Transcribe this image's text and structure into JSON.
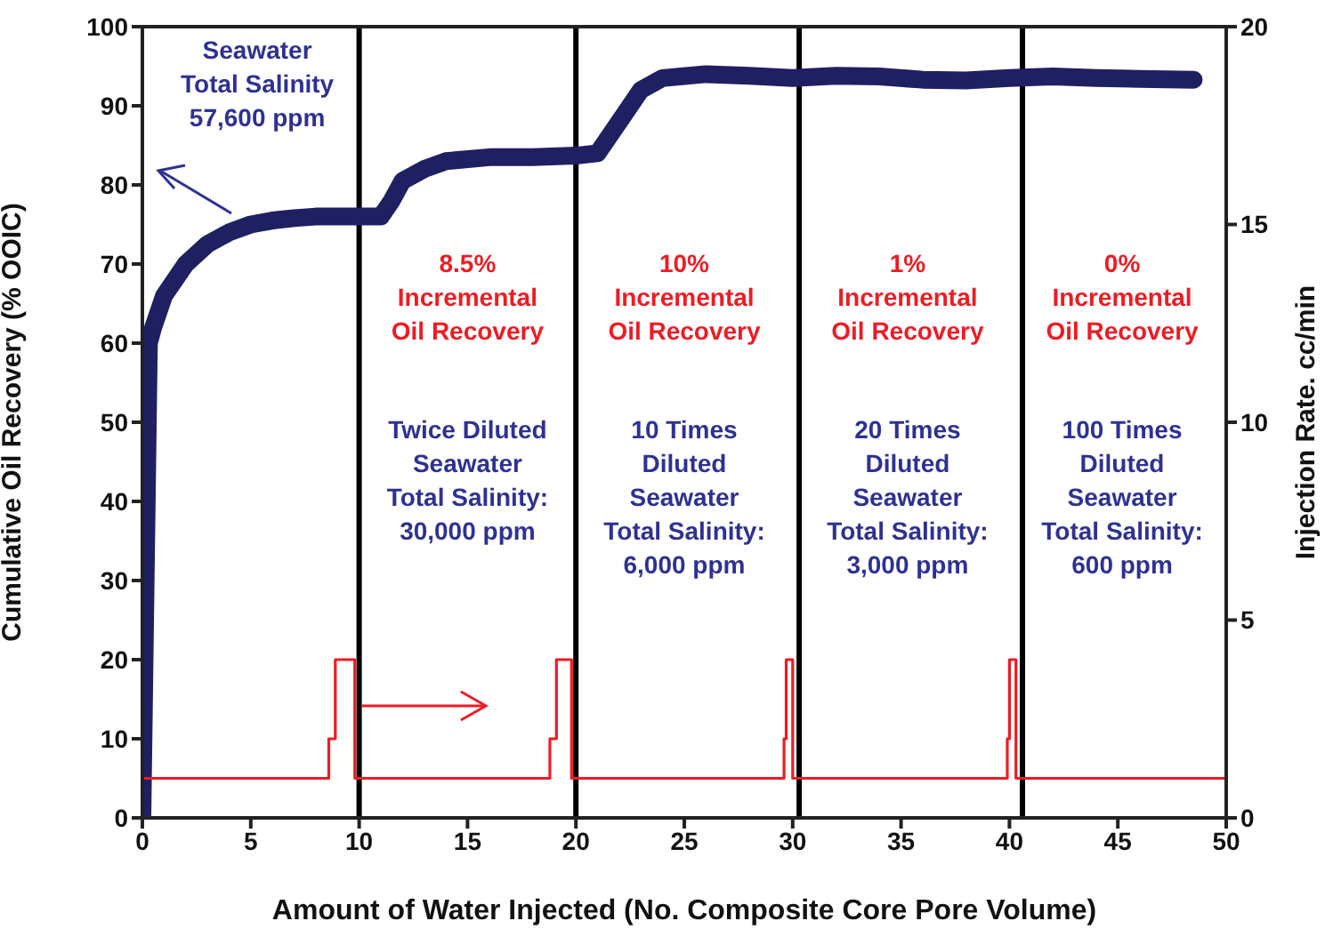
{
  "chart_data": {
    "type": "line",
    "xlabel": "Amount of Water Injected (No. Composite Core Pore Volume)",
    "ylabel": "Cumulative Oil Recovery (% OOIC)",
    "y2label": "Injection Rate. cc/min",
    "xlim": [
      0,
      50
    ],
    "xticks": [
      0,
      5,
      10,
      15,
      20,
      25,
      30,
      35,
      40,
      45,
      50
    ],
    "ylim": [
      0,
      100
    ],
    "yticks": [
      0,
      10,
      20,
      30,
      40,
      50,
      60,
      70,
      80,
      90,
      100
    ],
    "y2lim": [
      0,
      20
    ],
    "y2ticks": [
      0,
      5,
      10,
      15,
      20
    ],
    "series": [
      {
        "color": "#1f2062",
        "x": [
          0,
          0.3,
          0.5,
          1,
          2,
          3,
          4,
          5,
          6,
          7,
          8,
          10,
          11,
          11.5,
          12,
          13,
          14,
          16,
          18,
          20,
          21,
          22,
          23,
          24,
          26,
          28,
          30,
          32,
          34,
          36,
          38,
          40,
          42,
          44,
          46,
          48.5
        ],
        "values": [
          0,
          60,
          62,
          66,
          70,
          72.5,
          74,
          75,
          75.5,
          75.8,
          76,
          76,
          76,
          78,
          80.5,
          82,
          83,
          83.5,
          83.5,
          83.7,
          84,
          88,
          92,
          93.5,
          94,
          93.8,
          93.5,
          93.8,
          93.7,
          93.3,
          93.2,
          93.5,
          93.7,
          93.5,
          93.4,
          93.3
        ]
      },
      {
        "type": "step",
        "axis": "y2",
        "color": "#ed1c24",
        "x": [
          0,
          8.6,
          8.9,
          9.8,
          18.8,
          19.1,
          19.8,
          29.6,
          29.7,
          30,
          39.9,
          40,
          40.3,
          50
        ],
        "values": [
          1,
          2,
          4,
          1,
          2,
          4,
          1,
          2,
          4,
          1,
          2,
          4,
          1,
          1
        ]
      }
    ],
    "ref_lines": [
      {
        "axis": "x",
        "value": 10,
        "color": "#000000"
      },
      {
        "axis": "x",
        "value": 20,
        "color": "#000000"
      },
      {
        "axis": "x",
        "value": 30.3,
        "color": "#000000"
      },
      {
        "axis": "x",
        "value": 40.6,
        "color": "#000000"
      }
    ],
    "annotations": [
      "Seawater\nTotal Salinity\n57,600 ppm",
      "8.5%\nIncremental\nOil Recovery",
      "Twice Diluted\nSeawater\nTotal Salinity:\n30,000 ppm",
      "10%\nIncremental\nOil Recovery",
      "10 Times\nDiluted\nSeawater\nTotal Salinity:\n6,000 ppm",
      "1%\nIncremental\nOil Recovery",
      "20 Times\nDiluted\nSeawater\nTotal Salinity:\n3,000 ppm",
      "0%\nIncremental\nOil Recovery",
      "100 Times\nDiluted\nSeawater\nTotal Salinity:\n600 ppm"
    ],
    "marker": "none"
  }
}
